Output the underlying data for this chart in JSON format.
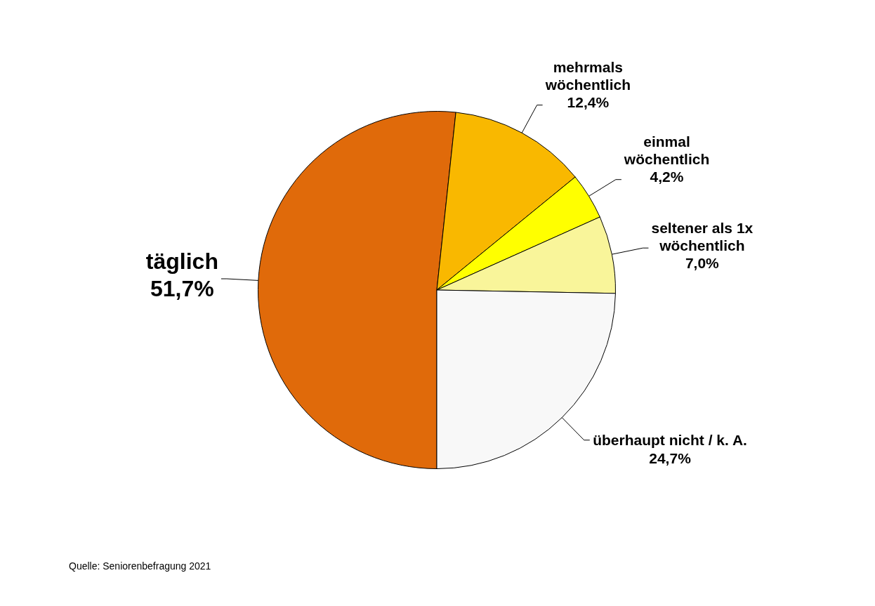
{
  "chart_data": {
    "type": "pie",
    "categories": [
      "täglich",
      "mehrmals wöchentlich",
      "einmal wöchentlich",
      "seltener als 1x wöchentlich",
      "überhaupt nicht / k. A."
    ],
    "values": [
      51.7,
      12.4,
      4.2,
      7.0,
      24.7
    ],
    "colors": [
      "#e06a0a",
      "#f9b800",
      "#ffff00",
      "#f9f59a",
      "#f8f8f8"
    ],
    "value_labels": [
      "51,7%",
      "12,4%",
      "4,2%",
      "7,0%",
      "24,7%"
    ],
    "annotations": [
      "Quelle: Seniorenbefragung 2021"
    ]
  }
}
